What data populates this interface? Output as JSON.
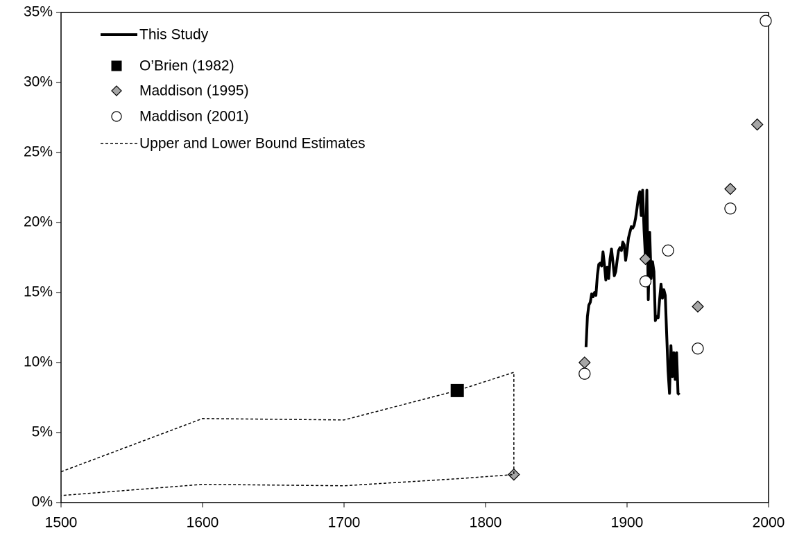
{
  "chart_data": {
    "type": "scatter",
    "xlim": [
      1500,
      2000
    ],
    "xticks": [
      1500,
      1600,
      1700,
      1800,
      1900,
      2000
    ],
    "ylim": [
      0,
      35
    ],
    "yticks": [
      {
        "value": 0,
        "label": "0%"
      },
      {
        "value": 5,
        "label": "5%"
      },
      {
        "value": 10,
        "label": "10%"
      },
      {
        "value": 15,
        "label": "15%"
      },
      {
        "value": 20,
        "label": "20%"
      },
      {
        "value": 25,
        "label": "25%"
      },
      {
        "value": 30,
        "label": "30%"
      },
      {
        "value": 35,
        "label": "35%"
      }
    ],
    "legend": "upper-left",
    "series": [
      {
        "name": "This Study",
        "color": "#000000",
        "marker": "line",
        "x": [
          1871,
          1872,
          1873,
          1874,
          1875,
          1876,
          1877,
          1878,
          1879,
          1880,
          1881,
          1882,
          1883,
          1884,
          1885,
          1886,
          1887,
          1888,
          1889,
          1890,
          1891,
          1892,
          1893,
          1894,
          1895,
          1896,
          1897,
          1898,
          1899,
          1900,
          1901,
          1902,
          1903,
          1904,
          1905,
          1906,
          1907,
          1908,
          1909,
          1910,
          1911,
          1912,
          1913,
          1914,
          1915,
          1916,
          1917,
          1918,
          1919,
          1920,
          1921,
          1922,
          1923,
          1924,
          1925,
          1926,
          1927,
          1928,
          1929,
          1930,
          1931,
          1932,
          1933,
          1934,
          1935,
          1936,
          1937
        ],
        "values": [
          11.1,
          13.3,
          14.1,
          14.3,
          14.9,
          14.7,
          15.0,
          14.8,
          16.2,
          17.0,
          17.1,
          16.9,
          17.9,
          17.0,
          15.9,
          16.8,
          16.0,
          17.4,
          18.1,
          17.2,
          16.2,
          16.5,
          17.3,
          18.0,
          18.2,
          18.0,
          18.6,
          18.4,
          17.3,
          18.0,
          18.9,
          19.3,
          19.7,
          19.6,
          19.8,
          20.3,
          21.0,
          21.8,
          22.2,
          20.5,
          22.3,
          19.5,
          17.5,
          22.3,
          14.5,
          19.3,
          16.0,
          17.2,
          16.5,
          13.0,
          13.3,
          13.2,
          14.5,
          15.6,
          14.6,
          15.2,
          14.8,
          12.0,
          9.4,
          7.8,
          11.2,
          9.0,
          10.7,
          8.8,
          10.7,
          7.8,
          7.7
        ]
      },
      {
        "name": "O’Brien (1982)",
        "color": "#000000",
        "marker": "square",
        "x": [
          1780
        ],
        "values": [
          8.0
        ]
      },
      {
        "name": "Maddison (1995)",
        "color": "#a6a6a6",
        "marker": "diamond",
        "x": [
          1820,
          1870,
          1913,
          1929,
          1950,
          1973,
          1992
        ],
        "values": [
          2.0,
          10.0,
          17.4,
          18.0,
          14.0,
          22.4,
          27.0
        ]
      },
      {
        "name": "Maddison (2001)",
        "color": "#ffffff",
        "marker": "circle",
        "x": [
          1870,
          1913,
          1929,
          1950,
          1973,
          1998
        ],
        "values": [
          9.2,
          15.8,
          18.0,
          11.0,
          21.0,
          34.4
        ]
      },
      {
        "name": "Upper and Lower Bound Estimates",
        "color": "#000000",
        "marker": "dashed-line",
        "x": [
          1500,
          1600,
          1700,
          1780,
          1820,
          1820,
          1780,
          1700,
          1600,
          1500
        ],
        "values": [
          2.2,
          6.0,
          5.9,
          8.0,
          9.3,
          2.0,
          1.7,
          1.2,
          1.3,
          0.5
        ]
      }
    ]
  }
}
